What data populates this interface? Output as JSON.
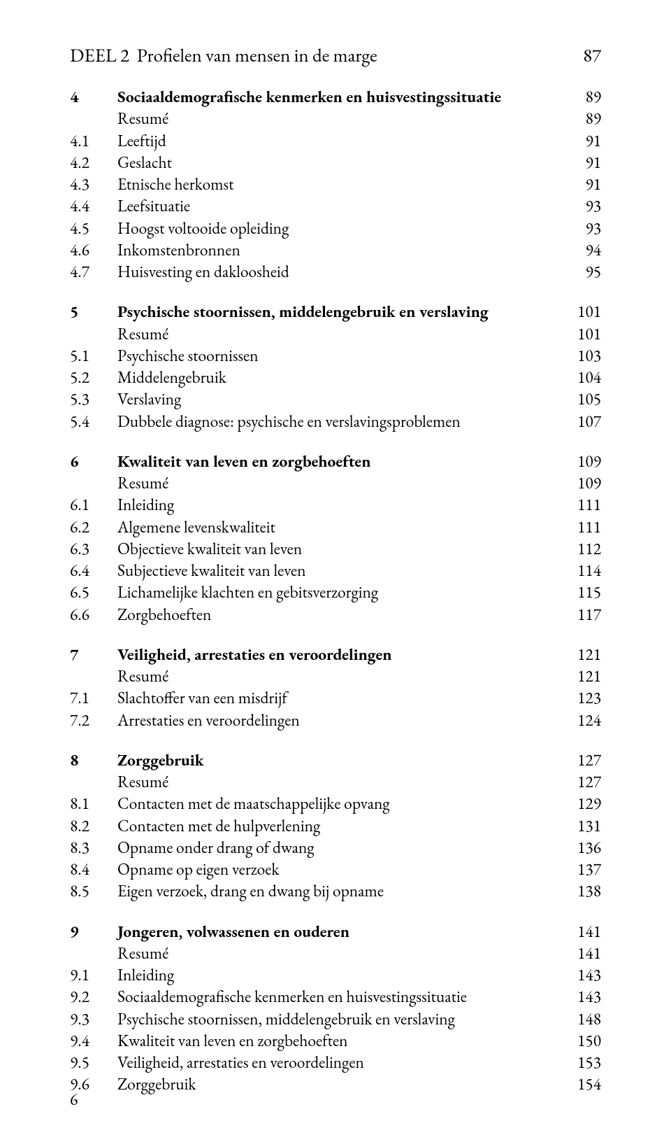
{
  "part": {
    "label": "DEEL 2  Profielen van mensen in de marge",
    "page": "87"
  },
  "sections": [
    {
      "head": {
        "num": "4",
        "title": "Sociaaldemografische kenmerken en huisvestingssituatie",
        "page": "89"
      },
      "rows": [
        {
          "num": "",
          "title": "Resumé",
          "page": "89"
        },
        {
          "num": "4.1",
          "title": "Leeftijd",
          "page": "91"
        },
        {
          "num": "4.2",
          "title": "Geslacht",
          "page": "91"
        },
        {
          "num": "4.3",
          "title": "Etnische herkomst",
          "page": "91"
        },
        {
          "num": "4.4",
          "title": "Leefsituatie",
          "page": "93"
        },
        {
          "num": "4.5",
          "title": "Hoogst voltooide opleiding",
          "page": "93"
        },
        {
          "num": "4.6",
          "title": "Inkomstenbronnen",
          "page": "94"
        },
        {
          "num": "4.7",
          "title": "Huisvesting en dakloosheid",
          "page": "95"
        }
      ]
    },
    {
      "head": {
        "num": "5",
        "title": "Psychische stoornissen, middelengebruik en verslaving",
        "page": "101"
      },
      "rows": [
        {
          "num": "",
          "title": "Resumé",
          "page": "101"
        },
        {
          "num": "5.1",
          "title": "Psychische stoornissen",
          "page": "103"
        },
        {
          "num": "5.2",
          "title": "Middelengebruik",
          "page": "104"
        },
        {
          "num": "5.3",
          "title": "Verslaving",
          "page": "105"
        },
        {
          "num": "5.4",
          "title": "Dubbele diagnose: psychische en verslavingsproblemen",
          "page": "107"
        }
      ]
    },
    {
      "head": {
        "num": "6",
        "title": "Kwaliteit van leven en zorgbehoeften",
        "page": "109"
      },
      "rows": [
        {
          "num": "",
          "title": "Resumé",
          "page": "109"
        },
        {
          "num": "6.1",
          "title": "Inleiding",
          "page": "111"
        },
        {
          "num": "6.2",
          "title": "Algemene levenskwaliteit",
          "page": "111"
        },
        {
          "num": "6.3",
          "title": "Objectieve kwaliteit van leven",
          "page": "112"
        },
        {
          "num": "6.4",
          "title": "Subjectieve kwaliteit van leven",
          "page": "114"
        },
        {
          "num": "6.5",
          "title": "Lichamelijke klachten en gebitsverzorging",
          "page": "115"
        },
        {
          "num": "6.6",
          "title": "Zorgbehoeften",
          "page": "117"
        }
      ]
    },
    {
      "head": {
        "num": "7",
        "title": "Veiligheid, arrestaties en veroordelingen",
        "page": "121"
      },
      "rows": [
        {
          "num": "",
          "title": "Resumé",
          "page": "121"
        },
        {
          "num": "7.1",
          "title": "Slachtoffer van een misdrijf",
          "page": "123"
        },
        {
          "num": "7.2",
          "title": "Arrestaties en veroordelingen",
          "page": "124"
        }
      ]
    },
    {
      "head": {
        "num": "8",
        "title": "Zorggebruik",
        "page": "127"
      },
      "rows": [
        {
          "num": "",
          "title": "Resumé",
          "page": "127"
        },
        {
          "num": "8.1",
          "title": "Contacten met de maatschappelijke opvang",
          "page": "129"
        },
        {
          "num": "8.2",
          "title": "Contacten met de hulpverlening",
          "page": "131"
        },
        {
          "num": "8.3",
          "title": "Opname onder drang of dwang",
          "page": "136"
        },
        {
          "num": "8.4",
          "title": "Opname op eigen verzoek",
          "page": "137"
        },
        {
          "num": "8.5",
          "title": "Eigen verzoek, drang en dwang bij opname",
          "page": "138"
        }
      ]
    },
    {
      "head": {
        "num": "9",
        "title": "Jongeren, volwassenen en ouderen",
        "page": "141"
      },
      "rows": [
        {
          "num": "",
          "title": "Resumé",
          "page": "141"
        },
        {
          "num": "9.1",
          "title": "Inleiding",
          "page": "143"
        },
        {
          "num": "9.2",
          "title": "Sociaaldemografische kenmerken en huisvestingssituatie",
          "page": "143"
        },
        {
          "num": "9.3",
          "title": "Psychische stoornissen, middelengebruik en verslaving",
          "page": "148"
        },
        {
          "num": "9.4",
          "title": "Kwaliteit van leven en zorgbehoeften",
          "page": "150"
        },
        {
          "num": "9.5",
          "title": "Veiligheid, arrestaties en veroordelingen",
          "page": "153"
        },
        {
          "num": "9.6",
          "title": "Zorggebruik",
          "page": "154"
        }
      ]
    }
  ],
  "footer": {
    "page_number": "6"
  }
}
